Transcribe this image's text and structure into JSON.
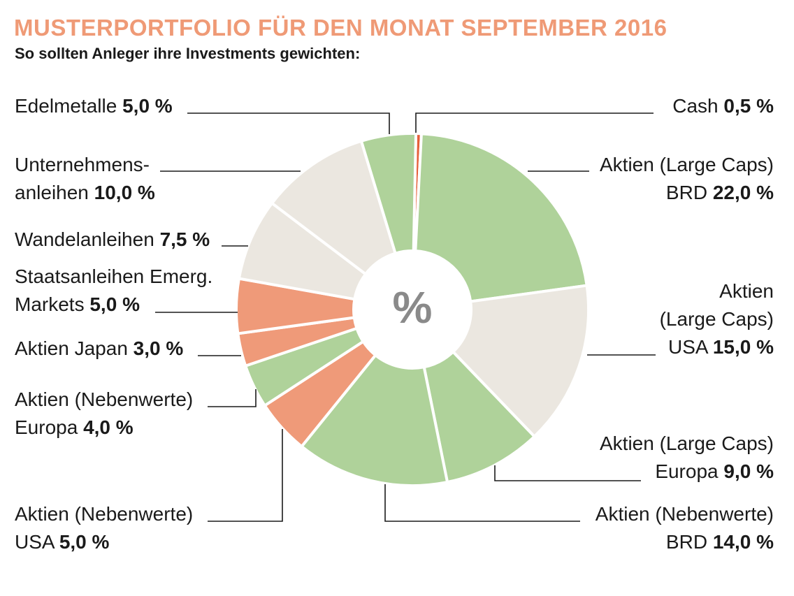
{
  "title": "MUSTERPORTFOLIO FÜR DEN MONAT SEPTEMBER 2016",
  "subtitle": "So sollten Anleger ihre Investments gewichten:",
  "center_label": "%",
  "colors": {
    "title": "#ef9a76",
    "green": "#afd29a",
    "beige": "#ebe7e0",
    "salmon": "#ef9a79",
    "cash": "#e6603a",
    "leader_line": "#1a1a1a"
  },
  "chart_data": {
    "type": "pie",
    "style": "donut",
    "unit": "%",
    "title": "MUSTERPORTFOLIO FÜR DEN MONAT SEPTEMBER 2016",
    "subtitle": "So sollten Anleger ihre Investments gewichten:",
    "slices": [
      {
        "label": "Cash",
        "value": 0.5,
        "value_text": "0,5 %",
        "color": "#e6603a"
      },
      {
        "label": "Aktien (Large Caps) BRD",
        "value": 22.0,
        "value_text": "22,0 %",
        "color": "#afd29a"
      },
      {
        "label": "Aktien (Large Caps) USA",
        "value": 15.0,
        "value_text": "15,0 %",
        "color": "#ebe7e0"
      },
      {
        "label": "Aktien (Large Caps) Europa",
        "value": 9.0,
        "value_text": "9,0 %",
        "color": "#afd29a"
      },
      {
        "label": "Aktien (Nebenwerte) BRD",
        "value": 14.0,
        "value_text": "14,0 %",
        "color": "#afd29a"
      },
      {
        "label": "Aktien (Nebenwerte) USA",
        "value": 5.0,
        "value_text": "5,0 %",
        "color": "#ef9a79"
      },
      {
        "label": "Aktien (Nebenwerte) Europa",
        "value": 4.0,
        "value_text": "4,0 %",
        "color": "#afd29a"
      },
      {
        "label": "Aktien Japan",
        "value": 3.0,
        "value_text": "3,0 %",
        "color": "#ef9a79"
      },
      {
        "label": "Staatsanleihen Emerg. Markets",
        "value": 5.0,
        "value_text": "5,0 %",
        "color": "#ef9a79"
      },
      {
        "label": "Wandelanleihen",
        "value": 7.5,
        "value_text": "7,5 %",
        "color": "#ebe7e0"
      },
      {
        "label": "Unternehmensanleihen",
        "value": 10.0,
        "value_text": "10,0 %",
        "color": "#ebe7e0"
      },
      {
        "label": "Edelmetalle",
        "value": 5.0,
        "value_text": "5,0 %",
        "color": "#afd29a"
      }
    ]
  },
  "labels": {
    "cash": {
      "name": "Cash",
      "value": "0,5 %"
    },
    "large_brd": {
      "line1": "Aktien (Large Caps)",
      "line2_name": "BRD",
      "value": "22,0 %"
    },
    "large_usa": {
      "line1": "Aktien",
      "line2": "(Large Caps)",
      "line3_name": "USA",
      "value": "15,0 %"
    },
    "large_europa": {
      "line1": "Aktien (Large Caps)",
      "line2_name": "Europa",
      "value": "9,0 %"
    },
    "neben_brd": {
      "line1": "Aktien (Nebenwerte)",
      "line2_name": "BRD",
      "value": "14,0 %"
    },
    "neben_usa": {
      "line1": "Aktien (Nebenwerte)",
      "line2_name": "USA",
      "value": "5,0 %"
    },
    "neben_europa": {
      "line1": "Aktien (Nebenwerte)",
      "line2_name": "Europa",
      "value": "4,0 %"
    },
    "japan": {
      "name": "Aktien Japan",
      "value": "3,0 %"
    },
    "staats": {
      "line1": "Staatsanleihen Emerg.",
      "line2_name": "Markets",
      "value": "5,0 %"
    },
    "wandel": {
      "name": "Wandelanleihen",
      "value": "7,5 %"
    },
    "unternehmen": {
      "line1": "Unternehmens-",
      "line2_name": "anleihen",
      "value": "10,0 %"
    },
    "edelmetalle": {
      "name": "Edelmetalle",
      "value": "5,0 %"
    }
  }
}
